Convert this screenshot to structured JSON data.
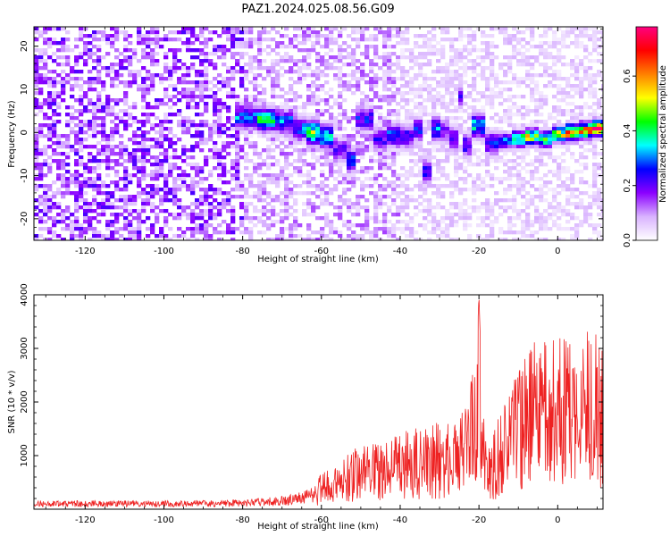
{
  "title": "PAZ1.2024.025.08.56.G09",
  "chart_data": [
    {
      "type": "heatmap",
      "xlabel": "Height of straight line (km)",
      "ylabel": "Frequency (Hz)",
      "xlim": [
        -133,
        11.5
      ],
      "ylim": [
        -25,
        24.5
      ],
      "xticks": [
        -120,
        -100,
        -80,
        -60,
        -40,
        -20,
        0
      ],
      "yticks": [
        -20,
        -10,
        0,
        10,
        20
      ],
      "colorbar": {
        "label": "Normalized spectral amplitude",
        "range": [
          0,
          0.78
        ],
        "ticks": [
          0.0,
          0.2,
          0.4,
          0.6
        ],
        "colormap": "rainbow-white-to-magenta",
        "colors": [
          "#ffffff",
          "#d9b3ff",
          "#8b00ff",
          "#0000ff",
          "#00ffff",
          "#00ff00",
          "#ffff00",
          "#ff8000",
          "#ff0000",
          "#ff0080"
        ]
      },
      "ridge": [
        {
          "x": -78,
          "f": 3.5,
          "a": 0.3
        },
        {
          "x": -74,
          "f": 3.0,
          "a": 0.4
        },
        {
          "x": -70,
          "f": 2.5,
          "a": 0.3
        },
        {
          "x": -65,
          "f": 0.8,
          "a": 0.3
        },
        {
          "x": -62,
          "f": 0.0,
          "a": 0.45
        },
        {
          "x": -58,
          "f": -1.0,
          "a": 0.35
        },
        {
          "x": -55,
          "f": -4.0,
          "a": 0.2
        },
        {
          "x": -53,
          "f": -6.5,
          "a": 0.3
        },
        {
          "x": -49,
          "f": 3.2,
          "a": 0.25
        },
        {
          "x": -45,
          "f": -1.5,
          "a": 0.22
        },
        {
          "x": -42,
          "f": -0.6,
          "a": 0.3
        },
        {
          "x": -38,
          "f": -1.0,
          "a": 0.25
        },
        {
          "x": -36,
          "f": 0.7,
          "a": 0.25
        },
        {
          "x": -32,
          "f": -9.0,
          "a": 0.25
        },
        {
          "x": -31,
          "f": 0.8,
          "a": 0.3
        },
        {
          "x": -28,
          "f": 0.3,
          "a": 0.2
        },
        {
          "x": -26,
          "f": -1.5,
          "a": 0.25
        },
        {
          "x": -25,
          "f": 8.5,
          "a": 0.2
        },
        {
          "x": -23,
          "f": -3.0,
          "a": 0.25
        },
        {
          "x": -20,
          "f": 1.5,
          "a": 0.35
        },
        {
          "x": -17,
          "f": -2.5,
          "a": 0.25
        },
        {
          "x": -13,
          "f": -2.0,
          "a": 0.3
        },
        {
          "x": -10,
          "f": -1.5,
          "a": 0.45
        },
        {
          "x": -6,
          "f": -1.0,
          "a": 0.5
        },
        {
          "x": -3,
          "f": -1.5,
          "a": 0.45
        },
        {
          "x": 0,
          "f": -0.5,
          "a": 0.5
        },
        {
          "x": 4,
          "f": 0.0,
          "a": 0.65
        },
        {
          "x": 7,
          "f": 0.5,
          "a": 0.6
        },
        {
          "x": 10,
          "f": 1.0,
          "a": 0.7
        }
      ]
    },
    {
      "type": "line",
      "xlabel": "Height of straight line (km)",
      "ylabel": "SNR (10 * v/v)",
      "xlim": [
        -133,
        11.5
      ],
      "ylim": [
        0,
        4000
      ],
      "xticks": [
        -120,
        -100,
        -80,
        -60,
        -40,
        -20,
        0
      ],
      "yticks": [
        1000,
        2000,
        3000,
        4000
      ],
      "series": [
        {
          "color": "#ee2222",
          "x": [
            -133,
            -120,
            -100,
            -80,
            -70,
            -63,
            -60,
            -55,
            -50,
            -45,
            -40,
            -35,
            -30,
            -25,
            -21,
            -20,
            -19,
            -17,
            -15,
            -12,
            -10,
            -5,
            -3,
            0,
            3,
            5,
            9,
            11.5
          ],
          "y": [
            120,
            120,
            120,
            130,
            180,
            280,
            500,
            700,
            900,
            1000,
            1050,
            1150,
            1200,
            1300,
            2000,
            4000,
            1600,
            900,
            1300,
            1700,
            2000,
            2400,
            2300,
            2500,
            2400,
            2300,
            2600,
            2200
          ]
        }
      ]
    }
  ]
}
